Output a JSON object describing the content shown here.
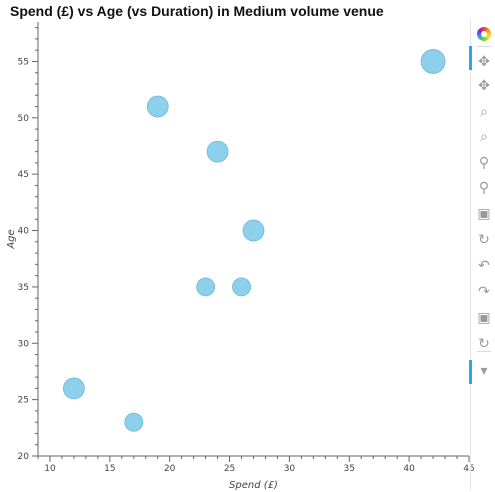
{
  "chart_data": {
    "type": "scatter",
    "title": "Spend (£) vs Age (vs Duration) in Medium volume venue",
    "xlabel": "Spend (£)",
    "ylabel": "Age",
    "xlim": [
      9,
      45
    ],
    "ylim": [
      20,
      58.5
    ],
    "x_ticks": [
      10,
      15,
      20,
      25,
      30,
      35,
      40,
      45
    ],
    "y_ticks": [
      20,
      25,
      30,
      35,
      40,
      45,
      50,
      55
    ],
    "points": [
      {
        "x": 42,
        "y": 55,
        "size": "large"
      },
      {
        "x": 19,
        "y": 51,
        "size": "medium"
      },
      {
        "x": 24,
        "y": 47,
        "size": "medium"
      },
      {
        "x": 27,
        "y": 40,
        "size": "medium"
      },
      {
        "x": 23,
        "y": 35,
        "size": "small"
      },
      {
        "x": 26,
        "y": 35,
        "size": "small"
      },
      {
        "x": 12,
        "y": 26,
        "size": "medium"
      },
      {
        "x": 17,
        "y": 23,
        "size": "small"
      }
    ],
    "marker_color": "#87ceeb",
    "grid": false,
    "legend": "none"
  },
  "toolbar": {
    "tools": [
      {
        "name": "bokeh-logo-icon",
        "glyph": ""
      },
      {
        "name": "pan-tool-icon",
        "glyph": "✥"
      },
      {
        "name": "pan-tool-icon-2",
        "glyph": "✥"
      },
      {
        "name": "box-zoom-icon",
        "glyph": "⌕"
      },
      {
        "name": "box-zoom-icon-2",
        "glyph": "⌕"
      },
      {
        "name": "wheel-zoom-icon",
        "glyph": "⚲"
      },
      {
        "name": "wheel-zoom-icon-2",
        "glyph": "⚲"
      },
      {
        "name": "save-icon",
        "glyph": "▣"
      },
      {
        "name": "reset-icon",
        "glyph": "↻"
      },
      {
        "name": "undo-icon",
        "glyph": "↶"
      },
      {
        "name": "redo-icon",
        "glyph": "↷"
      },
      {
        "name": "save-icon-2",
        "glyph": "▣"
      },
      {
        "name": "reset-icon-2",
        "glyph": "↻"
      },
      {
        "name": "hover-tool-icon",
        "glyph": "▾"
      }
    ]
  }
}
